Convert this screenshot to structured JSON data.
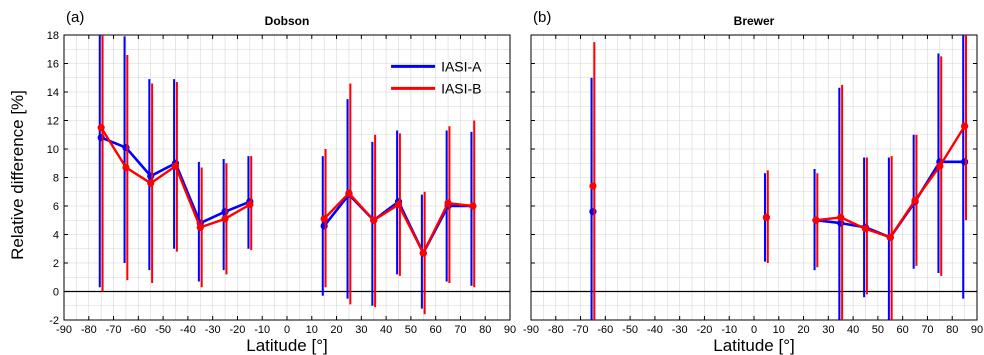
{
  "colors": {
    "IASI-A": "#0000ff",
    "IASI-B": "#ff0000",
    "grid": "#d6d6d6",
    "zero": "#000000"
  },
  "ylabel": "Relative difference [%]",
  "chart_data": [
    {
      "type": "line",
      "panel_label": "(a)",
      "title": "Dobson",
      "xlabel": "Latitude [°]",
      "ylabel": "Relative difference [%]",
      "xlim": [
        -90,
        90
      ],
      "ylim": [
        -2,
        18
      ],
      "xticks": [
        -90,
        -80,
        -70,
        -60,
        -50,
        -40,
        -30,
        -20,
        -10,
        0,
        10,
        20,
        30,
        40,
        50,
        60,
        70,
        80,
        90
      ],
      "yticks": [
        -2,
        0,
        2,
        4,
        6,
        8,
        10,
        12,
        14,
        16,
        18
      ],
      "grid": true,
      "legend": {
        "position": "top-right",
        "entries": [
          "IASI-A",
          "IASI-B"
        ]
      },
      "series": [
        {
          "name": "IASI-A",
          "segments": [
            {
              "x": [
                -75,
                -65,
                -55,
                -45,
                -35,
                -25,
                -15
              ],
              "y": [
                10.8,
                10.1,
                8.1,
                9.0,
                4.8,
                5.6,
                6.3
              ],
              "err_low": [
                0.3,
                2.0,
                1.5,
                3.0,
                0.7,
                1.5,
                3.0
              ],
              "err_high": [
                18,
                17.9,
                14.9,
                14.9,
                9.1,
                9.3,
                9.5
              ]
            },
            {
              "x": [
                15,
                25,
                35,
                45,
                55,
                65,
                75
              ],
              "y": [
                4.6,
                6.8,
                5.0,
                6.3,
                2.7,
                6.0,
                6.0
              ],
              "err_low": [
                -0.3,
                -0.5,
                -1.0,
                1.2,
                -1.2,
                0.7,
                0.4
              ],
              "err_high": [
                9.5,
                13.5,
                10.5,
                11.3,
                6.8,
                11.3,
                11.2
              ]
            }
          ]
        },
        {
          "name": "IASI-B",
          "segments": [
            {
              "x": [
                -75,
                -65,
                -55,
                -45,
                -35,
                -25,
                -15
              ],
              "y": [
                11.5,
                8.7,
                7.6,
                8.8,
                4.5,
                5.1,
                6.1
              ],
              "err_low": [
                0,
                0.8,
                0.6,
                2.8,
                0.3,
                1.2,
                2.9
              ],
              "err_high": [
                18,
                16.6,
                14.6,
                14.7,
                8.7,
                9.0,
                9.5
              ]
            },
            {
              "x": [
                15,
                25,
                35,
                45,
                55,
                65,
                75
              ],
              "y": [
                5.1,
                6.9,
                5.0,
                6.1,
                2.7,
                6.2,
                6.0
              ],
              "err_low": [
                0.3,
                -0.9,
                -1.1,
                1.1,
                -1.6,
                0.6,
                0.3
              ],
              "err_high": [
                10.0,
                14.6,
                11.0,
                11.1,
                7.0,
                11.6,
                12.0
              ]
            }
          ]
        }
      ]
    },
    {
      "type": "line",
      "panel_label": "(b)",
      "title": "Brewer",
      "xlabel": "Latitude [°]",
      "xlim": [
        -90,
        90
      ],
      "ylim": [
        -2,
        18
      ],
      "xticks": [
        -90,
        -80,
        -70,
        -60,
        -50,
        -40,
        -30,
        -20,
        -10,
        0,
        10,
        20,
        30,
        40,
        50,
        60,
        70,
        80,
        90
      ],
      "yticks": [
        -2,
        0,
        2,
        4,
        6,
        8,
        10,
        12,
        14,
        16,
        18
      ],
      "grid": true,
      "series": [
        {
          "name": "IASI-A",
          "segments": [
            {
              "x": [
                -65
              ],
              "y": [
                5.6
              ],
              "err_low": [
                -2
              ],
              "err_high": [
                15.0
              ]
            },
            {
              "x": [
                5
              ],
              "y": [
                5.2
              ],
              "err_low": [
                2.1
              ],
              "err_high": [
                8.3
              ]
            },
            {
              "x": [
                25,
                35,
                45,
                55,
                65,
                75,
                85
              ],
              "y": [
                5.0,
                4.8,
                4.5,
                3.8,
                6.3,
                9.1,
                9.1
              ],
              "err_low": [
                1.5,
                -2,
                -0.4,
                -2,
                1.6,
                1.3,
                -0.5
              ],
              "err_high": [
                8.6,
                14.3,
                9.4,
                9.4,
                11.0,
                16.7,
                18
              ]
            }
          ]
        },
        {
          "name": "IASI-B",
          "segments": [
            {
              "x": [
                -65
              ],
              "y": [
                7.4
              ],
              "err_low": [
                -2
              ],
              "err_high": [
                17.5
              ]
            },
            {
              "x": [
                5
              ],
              "y": [
                5.2
              ],
              "err_low": [
                2.0
              ],
              "err_high": [
                8.5
              ]
            },
            {
              "x": [
                25,
                35,
                45,
                55,
                65,
                75,
                85
              ],
              "y": [
                5.0,
                5.2,
                4.4,
                3.8,
                6.4,
                8.8,
                11.6
              ],
              "err_low": [
                1.7,
                -2,
                -0.2,
                -2,
                1.8,
                1.1,
                5.0
              ],
              "err_high": [
                8.3,
                14.5,
                9.4,
                9.5,
                11.0,
                16.5,
                18
              ]
            }
          ]
        }
      ]
    }
  ]
}
